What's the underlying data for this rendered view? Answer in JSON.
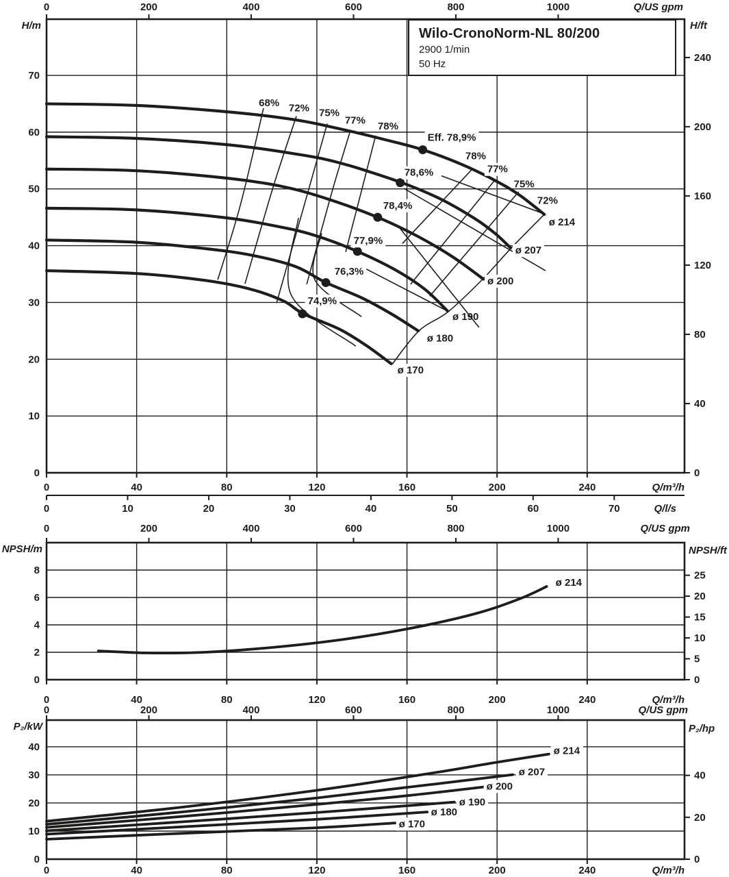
{
  "title_box": {
    "model": "Wilo-CronoNorm-NL 80/200",
    "speed": "2900 1/min",
    "frequency": "50 Hz"
  },
  "colors": {
    "ink": "#1d1d1b",
    "bg": "#ffffff",
    "label_bg": "#ffffff"
  },
  "chart_data": [
    {
      "id": "head_flow",
      "type": "line",
      "title": "Q-H curves",
      "axes": {
        "top": {
          "label": "Q/US gpm",
          "unit": "gpm",
          "ticks": [
            0,
            200,
            400,
            600,
            800,
            1000
          ]
        },
        "bottom": {
          "label": "Q/m³/h",
          "unit": "m3h",
          "ticks": [
            0,
            40,
            80,
            120,
            160,
            200,
            240
          ]
        },
        "bottom2": {
          "label": "Q/l/s",
          "unit": "ls",
          "ticks": [
            0,
            10,
            20,
            30,
            40,
            50,
            60,
            70
          ]
        },
        "left": {
          "label": "H/m",
          "ticks": [
            0,
            10,
            20,
            30,
            40,
            50,
            60,
            70
          ],
          "range": [
            0,
            79.9
          ]
        },
        "right": {
          "label": "H/ft",
          "unit": "ft",
          "ticks": [
            0,
            40,
            80,
            120,
            160,
            200,
            240
          ]
        }
      },
      "series": [
        {
          "name": "ø 214",
          "points": [
            [
              0,
              65
            ],
            [
              40,
              64.7
            ],
            [
              80,
              63.6
            ],
            [
              110,
              62.2
            ],
            [
              130,
              60.6
            ],
            [
              150,
              58.7
            ],
            [
              167,
              56.9
            ],
            [
              185,
              54.2
            ],
            [
              200,
              51.3
            ],
            [
              210,
              48.9
            ],
            [
              221,
              45.5
            ]
          ],
          "end_label": {
            "text": "ø 214",
            "q": 228.8,
            "v": 44.2,
            "boxed": false
          }
        },
        {
          "name": "ø 207",
          "points": [
            [
              0,
              59.2
            ],
            [
              40,
              58.9
            ],
            [
              80,
              57.8
            ],
            [
              110,
              56.2
            ],
            [
              130,
              54.6
            ],
            [
              157,
              51.2
            ],
            [
              175,
              48.2
            ],
            [
              190,
              44.8
            ],
            [
              199,
              42.2
            ],
            [
              206,
              39.6
            ]
          ],
          "end_label": {
            "text": "ø 207",
            "q": 213.9,
            "v": 39.2,
            "boxed": true
          }
        },
        {
          "name": "ø 200",
          "points": [
            [
              0,
              53.5
            ],
            [
              40,
              53.2
            ],
            [
              80,
              51.9
            ],
            [
              105,
              50.4
            ],
            [
              125,
              48.2
            ],
            [
              147,
              45.0
            ],
            [
              165,
              41.6
            ],
            [
              180,
              38.1
            ],
            [
              194,
              34.1
            ]
          ],
          "end_label": {
            "text": "ø 200",
            "q": 201.5,
            "v": 33.8,
            "boxed": true
          }
        },
        {
          "name": "ø 190",
          "points": [
            [
              0,
              46.6
            ],
            [
              40,
              46.3
            ],
            [
              80,
              44.9
            ],
            [
              105,
              43.2
            ],
            [
              120,
              41.7
            ],
            [
              138,
              39.0
            ],
            [
              155,
              35.7
            ],
            [
              168,
              32.3
            ],
            [
              178,
              28.5
            ]
          ],
          "end_label": {
            "text": "ø 190",
            "q": 186.0,
            "v": 27.5,
            "boxed": false
          }
        },
        {
          "name": "ø 180",
          "points": [
            [
              0,
              41.0
            ],
            [
              40,
              40.6
            ],
            [
              70,
              39.5
            ],
            [
              90,
              38.4
            ],
            [
              110,
              36.4
            ],
            [
              124,
              33.5
            ],
            [
              140,
              30.8
            ],
            [
              153,
              28.0
            ],
            [
              165,
              25.0
            ]
          ],
          "end_label": {
            "text": "ø 180",
            "q": 174.7,
            "v": 23.7,
            "boxed": false
          }
        },
        {
          "name": "ø 170",
          "points": [
            [
              0,
              35.6
            ],
            [
              40,
              35.1
            ],
            [
              70,
              33.9
            ],
            [
              90,
              32.4
            ],
            [
              105,
              30.3
            ],
            [
              114,
              28.0
            ],
            [
              130,
              25.3
            ],
            [
              142,
              22.4
            ],
            [
              153,
              19.2
            ]
          ],
          "end_label": {
            "text": "ø 170",
            "q": 161.6,
            "v": 18.1,
            "boxed": true
          }
        }
      ],
      "best_efficiency_points": [
        {
          "label": "Eff. 78,9%",
          "q": 167.0,
          "v": 56.9,
          "lq": 179.9,
          "lv": 59.1
        },
        {
          "label": "78,6%",
          "q": 157.0,
          "v": 51.1,
          "lq": 165.3,
          "lv": 52.9
        },
        {
          "label": "78,4%",
          "q": 147.0,
          "v": 45.0,
          "lq": 155.9,
          "lv": 47.1
        },
        {
          "label": "77,9%",
          "q": 138.0,
          "v": 39.0,
          "lq": 142.8,
          "lv": 40.9
        },
        {
          "label": "76,3%",
          "q": 124.0,
          "v": 33.5,
          "lq": 134.3,
          "lv": 35.5
        },
        {
          "label": "74,9%",
          "q": 113.6,
          "v": 28.0,
          "lq": 122.4,
          "lv": 30.3
        }
      ],
      "efficiency_labels": [
        {
          "text": "68%",
          "q": 98.8,
          "v": 65.2,
          "boxed": false
        },
        {
          "text": "72%",
          "q": 112.1,
          "v": 64.3,
          "boxed": false
        },
        {
          "text": "75%",
          "q": 125.5,
          "v": 63.4,
          "boxed": false
        },
        {
          "text": "77%",
          "q": 137.0,
          "v": 62.1,
          "boxed": false
        },
        {
          "text": "78%",
          "q": 151.6,
          "v": 61.1,
          "boxed": false
        },
        {
          "text": "78%",
          "q": 190.5,
          "v": 55.8,
          "boxed": false
        },
        {
          "text": "77%",
          "q": 200.2,
          "v": 53.5,
          "boxed": true
        },
        {
          "text": "75%",
          "q": 212.0,
          "v": 50.9,
          "boxed": false
        },
        {
          "text": "72%",
          "q": 222.4,
          "v": 48.0,
          "boxed": false
        }
      ],
      "efficiency_mesh": [
        {
          "name": "eff-68-left",
          "points": [
            [
              96.3,
              64.2
            ],
            [
              86,
              47.1
            ],
            [
              76,
              34
            ]
          ]
        },
        {
          "name": "eff-72-left",
          "points": [
            [
              110.9,
              62.8
            ],
            [
              100.5,
              50.2
            ],
            [
              88.1,
              33.3
            ]
          ]
        },
        {
          "name": "eff-75-left",
          "points": [
            [
              124.6,
              61.5
            ],
            [
              115,
              48
            ],
            [
              102.1,
              29.9
            ]
          ]
        },
        {
          "name": "eff-77-left",
          "points": [
            [
              134.9,
              60.3
            ],
            [
              126.5,
              49.2
            ],
            [
              115.5,
              33.2
            ]
          ]
        },
        {
          "name": "eff-78-left",
          "points": [
            [
              146.1,
              59.4
            ],
            [
              139.5,
              49.2
            ],
            [
              132.8,
              38.9
            ]
          ]
        },
        {
          "name": "eff-78-right",
          "points": [
            [
              189,
              53.5
            ],
            [
              158,
              40.4
            ]
          ]
        },
        {
          "name": "eff-77-right",
          "points": [
            [
              199.3,
              51.7
            ],
            [
              161.6,
              33.2
            ]
          ]
        },
        {
          "name": "eff-75-right",
          "points": [
            [
              209.6,
              49.5
            ],
            [
              170.1,
              31.1
            ]
          ]
        },
        {
          "name": "eff-72-right",
          "points": [
            [
              220.9,
              45.5
            ],
            [
              206.3,
              39.6
            ],
            [
              193.6,
              34.1
            ],
            [
              178.4,
              28.4
            ],
            [
              165.3,
              25
            ],
            [
              153.4,
              19.1
            ]
          ]
        },
        {
          "name": "mesh-diag-1",
          "points": [
            [
              175.3,
              52.3
            ],
            [
              220.9,
              45.6
            ]
          ]
        },
        {
          "name": "mesh-diag-2",
          "points": [
            [
              158.6,
              50.1
            ],
            [
              221.5,
              35.6
            ]
          ]
        },
        {
          "name": "mesh-diag-3",
          "points": [
            [
              156.2,
              43.4
            ],
            [
              192,
              25.6
            ]
          ]
        },
        {
          "name": "mesh-diag-4",
          "points": [
            [
              140.4,
              36.2
            ],
            [
              178.4,
              28.4
            ]
          ]
        },
        {
          "name": "mesh-loop-1",
          "points": [
            [
              111.8,
              44.9
            ],
            [
              108.5,
              31.4
            ],
            [
              137.3,
              22.3
            ]
          ]
        },
        {
          "name": "mesh-loop-2",
          "points": [
            [
              122.1,
              42.2
            ],
            [
              119.1,
              34
            ],
            [
              139.8,
              27.5
            ]
          ]
        }
      ]
    },
    {
      "id": "npsh",
      "type": "line",
      "title": "NPSH curve",
      "axes": {
        "top": {
          "label": "Q/US gpm",
          "unit": "gpm",
          "ticks": [
            0,
            200,
            400,
            600,
            800,
            1000
          ]
        },
        "bottom": {
          "label": "Q/m³/h",
          "unit": "m3h",
          "ticks": [
            0,
            40,
            80,
            120,
            160,
            200,
            240
          ]
        },
        "left": {
          "label": "NPSH/m",
          "ticks": [
            0,
            2,
            4,
            6,
            8
          ],
          "range": [
            0,
            10
          ]
        },
        "right": {
          "label": "NPSH/ft",
          "unit": "ft",
          "ticks": [
            0,
            5,
            10,
            15,
            20,
            25
          ]
        }
      },
      "series": [
        {
          "name": "ø 214",
          "points": [
            [
              23,
              2.1
            ],
            [
              45,
              1.95
            ],
            [
              70,
              2.0
            ],
            [
              100,
              2.35
            ],
            [
              130,
              2.9
            ],
            [
              160,
              3.7
            ],
            [
              190,
              4.8
            ],
            [
              210,
              5.9
            ],
            [
              222,
              6.8
            ]
          ],
          "end_label": {
            "text": "ø 214",
            "q": 231.8,
            "v": 7.1,
            "boxed": false
          }
        }
      ]
    },
    {
      "id": "power",
      "type": "line",
      "title": "P2 curves",
      "axes": {
        "top": {
          "label": "Q/US gpm",
          "unit": "gpm",
          "ticks": [
            0,
            200,
            400,
            600,
            800,
            1000
          ]
        },
        "bottom": {
          "label": "Q/m³/h",
          "unit": "m3h",
          "ticks": [
            0,
            40,
            80,
            120,
            160,
            200,
            240
          ]
        },
        "left": {
          "label": "P₂/kW",
          "ticks": [
            0,
            10,
            20,
            30,
            40
          ],
          "range": [
            0,
            49.5
          ]
        },
        "right": {
          "label": "P₂/hp",
          "unit": "hp",
          "ticks": [
            0,
            20,
            40
          ]
        }
      },
      "series": [
        {
          "name": "ø 214",
          "points": [
            [
              0,
              13.5
            ],
            [
              60,
              18.5
            ],
            [
              120,
              24.5
            ],
            [
              170,
              30.5
            ],
            [
              200,
              34.5
            ],
            [
              223,
              37.4
            ]
          ],
          "end_label": {
            "text": "ø 214",
            "q": 230.9,
            "v": 38.6,
            "boxed": true
          }
        },
        {
          "name": "ø 207",
          "points": [
            [
              0,
              12.4
            ],
            [
              60,
              16.8
            ],
            [
              120,
              21.8
            ],
            [
              170,
              26.5
            ],
            [
              207,
              30.1
            ]
          ],
          "end_label": {
            "text": "ø 207",
            "q": 215.4,
            "v": 31.1,
            "boxed": true
          }
        },
        {
          "name": "ø 200",
          "points": [
            [
              0,
              11.3
            ],
            [
              60,
              15.2
            ],
            [
              120,
              19.5
            ],
            [
              160,
              22.6
            ],
            [
              194,
              25.7
            ]
          ],
          "end_label": {
            "text": "ø 200",
            "q": 201.1,
            "v": 26.0,
            "boxed": true
          }
        },
        {
          "name": "ø 190",
          "points": [
            [
              0,
              10.1
            ],
            [
              60,
              13.3
            ],
            [
              120,
              16.6
            ],
            [
              181,
              20.3
            ]
          ],
          "end_label": {
            "text": "ø 190",
            "q": 189.0,
            "v": 20.4,
            "boxed": true
          }
        },
        {
          "name": "ø 180",
          "points": [
            [
              0,
              8.9
            ],
            [
              60,
              11.5
            ],
            [
              120,
              14.2
            ],
            [
              169,
              16.8
            ]
          ],
          "end_label": {
            "text": "ø 180",
            "q": 176.5,
            "v": 16.8,
            "boxed": false
          }
        },
        {
          "name": "ø 170",
          "points": [
            [
              0,
              7.1
            ],
            [
              60,
              9.2
            ],
            [
              120,
              11.2
            ],
            [
              155,
              12.9
            ]
          ],
          "end_label": {
            "text": "ø 170",
            "q": 162.2,
            "v": 12.6,
            "boxed": true
          }
        }
      ]
    }
  ]
}
